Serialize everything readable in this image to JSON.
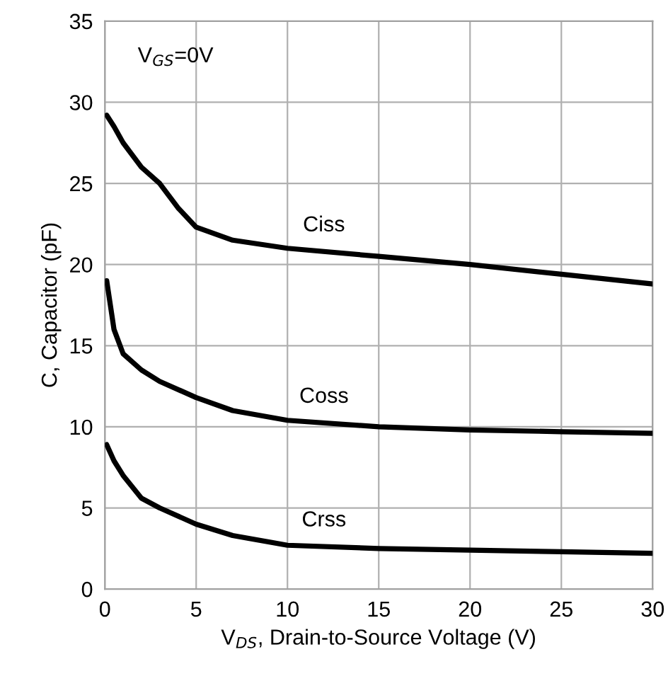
{
  "chart_data": {
    "type": "line",
    "xlabel": "V$_{DS}$, Drain-to-Source Voltage (V)",
    "ylabel": "C, Capacitor (pF)",
    "xlim": [
      0,
      30
    ],
    "ylim": [
      0,
      35
    ],
    "xticks": [
      0,
      5,
      10,
      15,
      20,
      25,
      30
    ],
    "yticks": [
      0,
      5,
      10,
      15,
      20,
      25,
      30,
      35
    ],
    "grid": true,
    "legend": false,
    "marker": "none",
    "line_style": "solid",
    "series": [
      {
        "name": "Ciss",
        "color": "#000000",
        "x": [
          0.1,
          0.5,
          1,
          2,
          3,
          4,
          5,
          7,
          10,
          15,
          20,
          25,
          30
        ],
        "values": [
          29.2,
          28.5,
          27.5,
          26,
          25,
          23.5,
          22.3,
          21.5,
          21,
          20.5,
          20,
          19.4,
          18.8
        ]
      },
      {
        "name": "Coss",
        "color": "#000000",
        "x": [
          0.1,
          0.5,
          1,
          2,
          3,
          5,
          7,
          10,
          15,
          20,
          25,
          30
        ],
        "values": [
          19,
          16,
          14.5,
          13.5,
          12.8,
          11.8,
          11,
          10.4,
          10,
          9.8,
          9.7,
          9.6
        ]
      },
      {
        "name": "Crss",
        "color": "#000000",
        "x": [
          0.1,
          0.5,
          1,
          2,
          3,
          5,
          7,
          10,
          15,
          20,
          25,
          30
        ],
        "values": [
          8.9,
          7.9,
          7,
          5.6,
          5,
          4,
          3.3,
          2.7,
          2.5,
          2.4,
          2.3,
          2.2
        ]
      }
    ],
    "annotations": [
      "V$_{GS}$=0V"
    ]
  }
}
